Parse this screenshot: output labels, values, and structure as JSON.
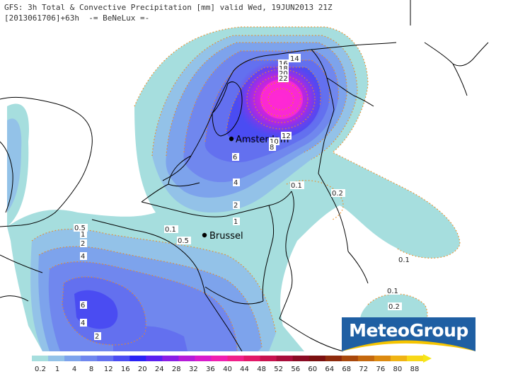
{
  "header": {
    "line1": "GFS: 3h Total & Convective Precipitation [mm] valid Wed, 19JUN2013 21Z",
    "line2": "[2013061706]+63h  -= BeNeLux =-"
  },
  "cities": [
    {
      "name": "Amsterdam"
    },
    {
      "name": "Brussel"
    }
  ],
  "contour_labels": [
    "14",
    "16",
    "18",
    "20",
    "22",
    "12",
    "10",
    "8",
    "6",
    "4",
    "2",
    "1",
    "0.5",
    "0.1",
    "0.2",
    "0.1",
    "0.1",
    "0.2",
    "1",
    "2",
    "4",
    "6",
    "4",
    "2",
    "0.5",
    "0.1"
  ],
  "logo": {
    "text": "MeteoGroup"
  },
  "legend": {
    "values": [
      "0.2",
      "1",
      "4",
      "8",
      "12",
      "16",
      "20",
      "24",
      "28",
      "32",
      "36",
      "40",
      "44",
      "48",
      "52",
      "56",
      "60",
      "64",
      "68",
      "72",
      "76",
      "80",
      "88"
    ],
    "colors": [
      "#a6dede",
      "#93c2e8",
      "#7da3ec",
      "#7087ee",
      "#6370ef",
      "#4a4cf2",
      "#2a22f5",
      "#5a1ff0",
      "#8a1de5",
      "#b51cd8",
      "#d81bcc",
      "#f01fb0",
      "#f0208a",
      "#e21868",
      "#c8124e",
      "#a80d3a",
      "#8a0b24",
      "#7b1010",
      "#8e2a0c",
      "#a8480c",
      "#c4680e",
      "#dc8a10",
      "#f0b414",
      "#f8d818"
    ],
    "arrow_color": "#f5e619"
  }
}
